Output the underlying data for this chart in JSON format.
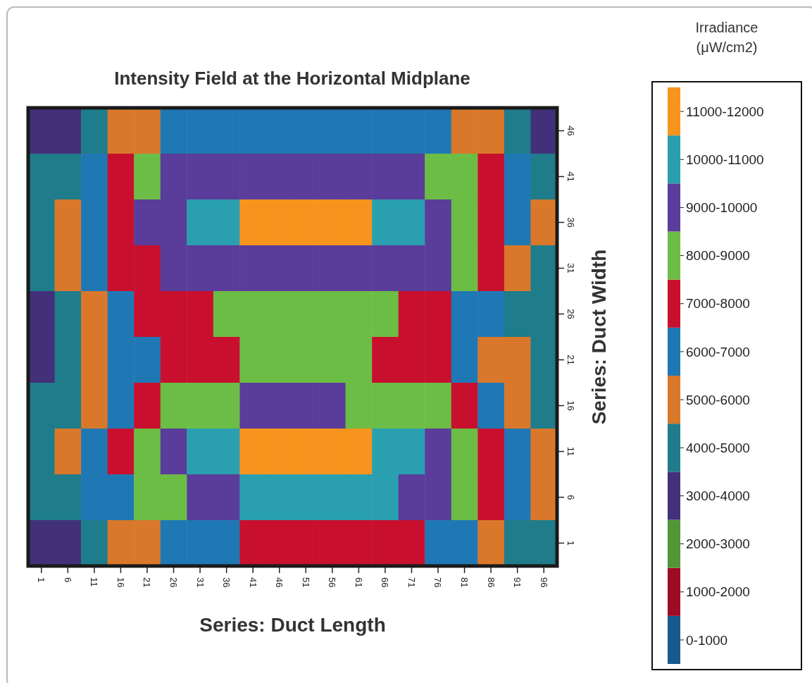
{
  "chart_data": {
    "type": "heatmap",
    "title": "Intensity Field at the Horizontal Midplane",
    "xlabel": "Series: Duct Length",
    "ylabel": "Series: Duct Width",
    "clabel": "Irradiance (μW/cm2)",
    "categories": [
      "1",
      "6",
      "11",
      "16",
      "21",
      "26",
      "31",
      "36",
      "41",
      "46",
      "51",
      "56",
      "61",
      "66",
      "71",
      "76",
      "81",
      "86",
      "91",
      "96"
    ],
    "y_categories": [
      "46",
      "41",
      "36",
      "31",
      "26",
      "21",
      "16",
      "11",
      "6",
      "1"
    ],
    "clim": [
      0,
      12000
    ],
    "cticks": [
      {
        "value": 11500,
        "label": "11000-12000"
      },
      {
        "value": 10500,
        "label": "10000-11000"
      },
      {
        "value": 9500,
        "label": "9000-10000"
      },
      {
        "value": 8500,
        "label": "8000-9000"
      },
      {
        "value": 7500,
        "label": "7000-8000"
      },
      {
        "value": 6500,
        "label": "6000-7000"
      },
      {
        "value": 5500,
        "label": "5000-6000"
      },
      {
        "value": 4500,
        "label": "4000-5000"
      },
      {
        "value": 3500,
        "label": "3000-4000"
      },
      {
        "value": 2500,
        "label": "2000-3000"
      },
      {
        "value": 1500,
        "label": "1000-2000"
      },
      {
        "value": 500,
        "label": "0-1000"
      }
    ],
    "cells": [
      [
        3500,
        3500,
        4500,
        5500,
        5500,
        6500,
        6500,
        6500,
        6500,
        6500,
        6500,
        6500,
        6500,
        6500,
        6500,
        6500,
        5500,
        5500,
        4500,
        3500
      ],
      [
        4500,
        4500,
        6500,
        7500,
        8500,
        9500,
        9500,
        9500,
        9500,
        9500,
        9500,
        9500,
        9500,
        9500,
        9500,
        8500,
        8500,
        7500,
        6500,
        4500
      ],
      [
        4500,
        5500,
        6500,
        7500,
        9500,
        9500,
        10500,
        10500,
        11500,
        11500,
        11500,
        11500,
        11500,
        10500,
        10500,
        9500,
        8500,
        7500,
        6500,
        5500
      ],
      [
        4500,
        5500,
        6500,
        7500,
        7500,
        9500,
        9500,
        9500,
        9500,
        9500,
        9500,
        9500,
        9500,
        9500,
        9500,
        9500,
        8500,
        7500,
        5500,
        4500
      ],
      [
        3500,
        4500,
        5500,
        6500,
        7500,
        7500,
        7500,
        8500,
        8500,
        8500,
        8500,
        8500,
        8500,
        8500,
        7500,
        7500,
        6500,
        6500,
        4500,
        4500
      ],
      [
        3500,
        4500,
        5500,
        6500,
        6500,
        7500,
        7500,
        7500,
        8500,
        8500,
        8500,
        8500,
        8500,
        7500,
        7500,
        7500,
        6500,
        5500,
        5500,
        4500
      ],
      [
        4500,
        4500,
        5500,
        6500,
        7500,
        8500,
        8500,
        8500,
        9500,
        9500,
        9500,
        9500,
        8500,
        8500,
        8500,
        8500,
        7500,
        6500,
        5500,
        4500
      ],
      [
        4500,
        5500,
        6500,
        7500,
        8500,
        9500,
        10500,
        10500,
        11500,
        11500,
        11500,
        11500,
        11500,
        10500,
        10500,
        9500,
        8500,
        7500,
        6500,
        5500
      ],
      [
        4500,
        4500,
        6500,
        6500,
        8500,
        8500,
        9500,
        9500,
        10500,
        10500,
        10500,
        10500,
        10500,
        10500,
        9500,
        9500,
        8500,
        7500,
        6500,
        5500
      ],
      [
        3500,
        3500,
        4500,
        5500,
        5500,
        6500,
        6500,
        6500,
        7500,
        7500,
        7500,
        7500,
        7500,
        7500,
        7500,
        6500,
        6500,
        5500,
        4500,
        4500
      ]
    ]
  }
}
